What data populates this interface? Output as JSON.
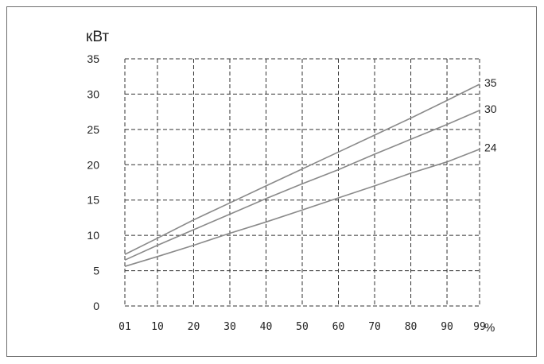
{
  "chart_data": {
    "type": "line",
    "ylabel": "кВт",
    "xunit": "%",
    "x_tick_labels": [
      "01",
      "10",
      "20",
      "30",
      "40",
      "50",
      "60",
      "70",
      "80",
      "90",
      "99"
    ],
    "x_tick_values": [
      1,
      10,
      20,
      30,
      40,
      50,
      60,
      70,
      80,
      90,
      99
    ],
    "y_tick_labels": [
      "0",
      "5",
      "10",
      "15",
      "20",
      "25",
      "30",
      "35"
    ],
    "y_tick_values": [
      0,
      5,
      10,
      15,
      20,
      25,
      30,
      35
    ],
    "xlim": [
      1,
      99
    ],
    "ylim": [
      0,
      35
    ],
    "grid": true,
    "series": [
      {
        "name": "35",
        "x": [
          1,
          10,
          20,
          30,
          40,
          50,
          60,
          70,
          80,
          90,
          99
        ],
        "values": [
          7.3,
          9.6,
          12.2,
          14.6,
          17.0,
          19.4,
          21.8,
          24.2,
          26.6,
          29.1,
          31.4
        ]
      },
      {
        "name": "30",
        "x": [
          1,
          10,
          20,
          30,
          40,
          50,
          60,
          70,
          80,
          90,
          99
        ],
        "values": [
          6.5,
          8.6,
          10.8,
          13.0,
          15.2,
          17.3,
          19.3,
          21.5,
          23.6,
          25.7,
          27.7
        ]
      },
      {
        "name": "24",
        "x": [
          1,
          10,
          20,
          30,
          40,
          50,
          60,
          70,
          80,
          90,
          99
        ],
        "values": [
          5.6,
          7.0,
          8.6,
          10.3,
          11.9,
          13.6,
          15.3,
          17.0,
          18.8,
          20.4,
          22.2
        ]
      }
    ],
    "colors": {
      "series": "#8a8a8a",
      "grid": "#333333",
      "text": "#222222"
    }
  }
}
